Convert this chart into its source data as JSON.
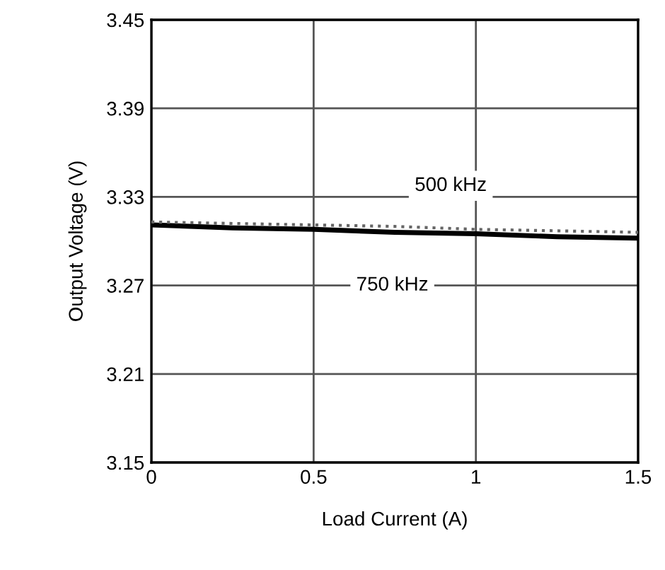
{
  "chart_data": {
    "type": "line",
    "xlabel": "Load Current (A)",
    "ylabel": "Output Voltage (V)",
    "xlim": [
      0,
      1.5
    ],
    "ylim": [
      3.15,
      3.45
    ],
    "xticks": [
      0,
      0.5,
      1,
      1.5
    ],
    "yticks": [
      3.15,
      3.21,
      3.27,
      3.33,
      3.39,
      3.45
    ],
    "grid": true,
    "series": [
      {
        "color": "#000000",
        "line_style": "solid",
        "x": [
          0,
          0.25,
          0.5,
          0.75,
          1,
          1.25,
          1.5
        ],
        "values": [
          3.311,
          3.309,
          3.308,
          3.306,
          3.305,
          3.303,
          3.302
        ]
      },
      {
        "color": "#666666",
        "line_style": "dotted",
        "x": [
          0,
          0.25,
          0.5,
          0.75,
          1,
          1.25,
          1.5
        ],
        "values": [
          3.313,
          3.312,
          3.311,
          3.31,
          3.308,
          3.307,
          3.306
        ]
      }
    ],
    "annotations": [
      "500 kHz",
      "750 kHz"
    ]
  }
}
